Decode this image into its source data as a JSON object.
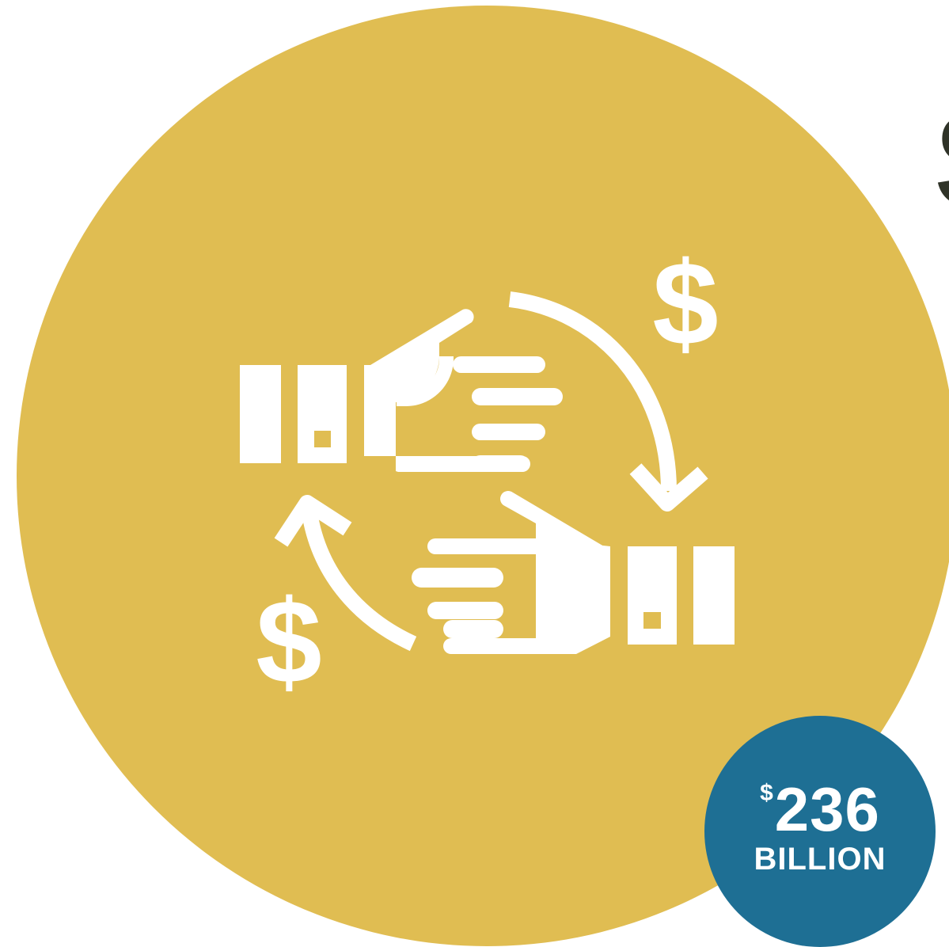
{
  "colors": {
    "background": "#ffffff",
    "main_circle": "#e0bd52",
    "icon": "#ffffff",
    "badge": "#1e6f94",
    "badge_text": "#ffffff",
    "edge_text": "#2f3328"
  },
  "icon": {
    "name": "money-exchange-handshake-icon",
    "upper_dollar": "$",
    "lower_dollar": "$"
  },
  "edge_text": "S",
  "badge": {
    "currency": "$",
    "amount": "236",
    "unit": "BILLION"
  }
}
